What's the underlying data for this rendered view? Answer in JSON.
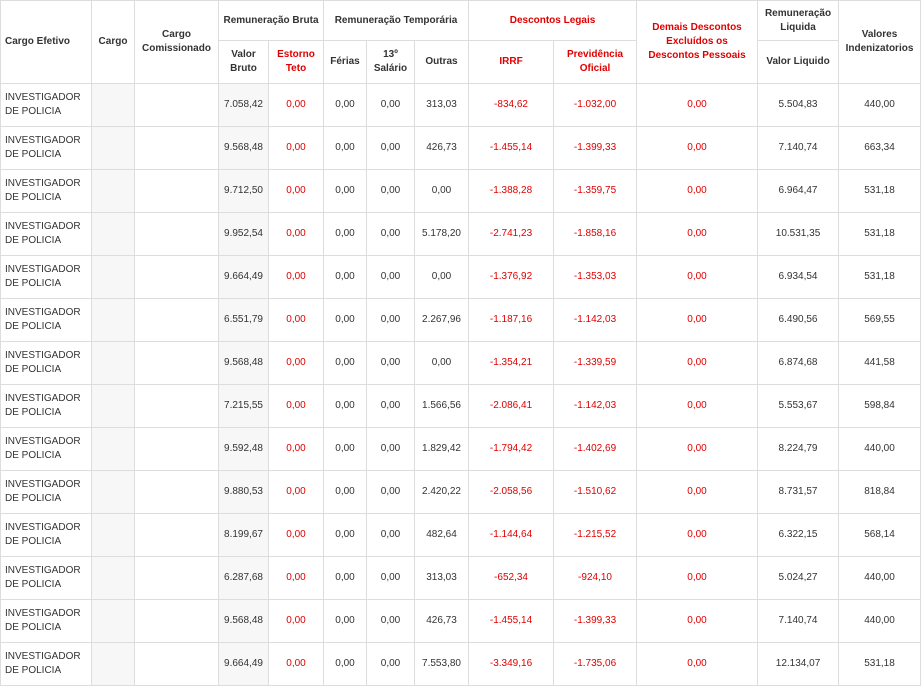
{
  "table": {
    "header": {
      "cargo_efetivo": "Cargo Efetivo",
      "cargo": "Cargo",
      "cargo_comissionado": "Cargo Comissionado",
      "remuneracao_bruta": "Remuneração Bruta",
      "remuneracao_temporaria": "Remuneração Temporária",
      "descontos_legais": "Descontos Legais",
      "demais_descontos": "Demais Descontos Excluídos os Descontos Pessoais",
      "remuneracao_liquida": "Remuneração Liquida",
      "valores_indenizatorios": "Valores Indenizatorios",
      "valor_bruto": "Valor Bruto",
      "estorno_teto": "Estorno Teto",
      "ferias": "Férias",
      "decimo": "13º Salário",
      "outras": "Outras",
      "irrf": "IRRF",
      "previdencia": "Previdência Oficial",
      "valor_liquido": "Valor Liquido"
    },
    "rows": [
      {
        "cargo_efetivo": "INVESTIGADOR DE POLICIA",
        "values": [
          "7.058,42",
          "0,00",
          "0,00",
          "0,00",
          "313,03",
          "-834,62",
          "-1.032,00",
          "0,00",
          "5.504,83",
          "440,00"
        ]
      },
      {
        "cargo_efetivo": "INVESTIGADOR DE POLICIA",
        "values": [
          "9.568,48",
          "0,00",
          "0,00",
          "0,00",
          "426,73",
          "-1.455,14",
          "-1.399,33",
          "0,00",
          "7.140,74",
          "663,34"
        ]
      },
      {
        "cargo_efetivo": "INVESTIGADOR DE POLICIA",
        "values": [
          "9.712,50",
          "0,00",
          "0,00",
          "0,00",
          "0,00",
          "-1.388,28",
          "-1.359,75",
          "0,00",
          "6.964,47",
          "531,18"
        ]
      },
      {
        "cargo_efetivo": "INVESTIGADOR DE POLICIA",
        "values": [
          "9.952,54",
          "0,00",
          "0,00",
          "0,00",
          "5.178,20",
          "-2.741,23",
          "-1.858,16",
          "0,00",
          "10.531,35",
          "531,18"
        ]
      },
      {
        "cargo_efetivo": "INVESTIGADOR DE POLICIA",
        "values": [
          "9.664,49",
          "0,00",
          "0,00",
          "0,00",
          "0,00",
          "-1.376,92",
          "-1.353,03",
          "0,00",
          "6.934,54",
          "531,18"
        ]
      },
      {
        "cargo_efetivo": "INVESTIGADOR DE POLICIA",
        "values": [
          "6.551,79",
          "0,00",
          "0,00",
          "0,00",
          "2.267,96",
          "-1.187,16",
          "-1.142,03",
          "0,00",
          "6.490,56",
          "569,55"
        ]
      },
      {
        "cargo_efetivo": "INVESTIGADOR DE POLICIA",
        "values": [
          "9.568,48",
          "0,00",
          "0,00",
          "0,00",
          "0,00",
          "-1.354,21",
          "-1.339,59",
          "0,00",
          "6.874,68",
          "441,58"
        ]
      },
      {
        "cargo_efetivo": "INVESTIGADOR DE POLICIA",
        "values": [
          "7.215,55",
          "0,00",
          "0,00",
          "0,00",
          "1.566,56",
          "-2.086,41",
          "-1.142,03",
          "0,00",
          "5.553,67",
          "598,84"
        ]
      },
      {
        "cargo_efetivo": "INVESTIGADOR DE POLICIA",
        "values": [
          "9.592,48",
          "0,00",
          "0,00",
          "0,00",
          "1.829,42",
          "-1.794,42",
          "-1.402,69",
          "0,00",
          "8.224,79",
          "440,00"
        ]
      },
      {
        "cargo_efetivo": "INVESTIGADOR DE POLICIA",
        "values": [
          "9.880,53",
          "0,00",
          "0,00",
          "0,00",
          "2.420,22",
          "-2.058,56",
          "-1.510,62",
          "0,00",
          "8.731,57",
          "818,84"
        ]
      },
      {
        "cargo_efetivo": "INVESTIGADOR DE POLICIA",
        "values": [
          "8.199,67",
          "0,00",
          "0,00",
          "0,00",
          "482,64",
          "-1.144,64",
          "-1.215,52",
          "0,00",
          "6.322,15",
          "568,14"
        ]
      },
      {
        "cargo_efetivo": "INVESTIGADOR DE POLICIA",
        "values": [
          "6.287,68",
          "0,00",
          "0,00",
          "0,00",
          "313,03",
          "-652,34",
          "-924,10",
          "0,00",
          "5.024,27",
          "440,00"
        ]
      },
      {
        "cargo_efetivo": "INVESTIGADOR DE POLICIA",
        "values": [
          "9.568,48",
          "0,00",
          "0,00",
          "0,00",
          "426,73",
          "-1.455,14",
          "-1.399,33",
          "0,00",
          "7.140,74",
          "440,00"
        ]
      },
      {
        "cargo_efetivo": "INVESTIGADOR DE POLICIA",
        "values": [
          "9.664,49",
          "0,00",
          "0,00",
          "0,00",
          "7.553,80",
          "-3.349,16",
          "-1.735,06",
          "0,00",
          "12.134,07",
          "531,18"
        ]
      }
    ]
  }
}
